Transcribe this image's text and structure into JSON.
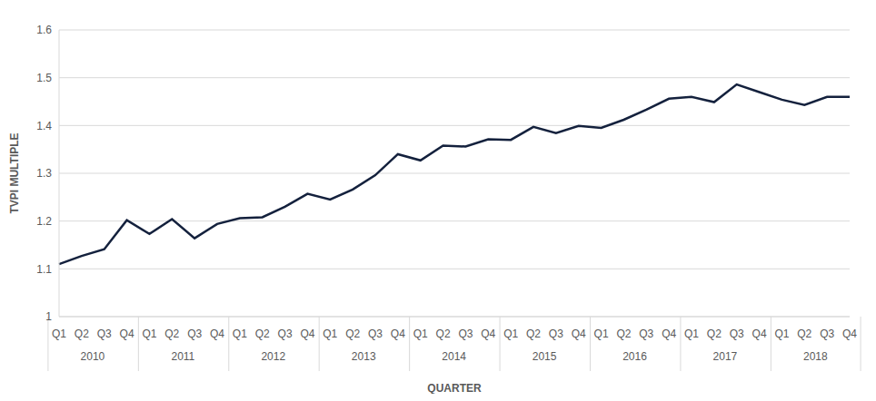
{
  "chart_data": {
    "type": "line",
    "x_label": "QUARTER",
    "y_label": "TVPI MULTIPLE",
    "categories": [
      "Q1",
      "Q2",
      "Q3",
      "Q4",
      "Q1",
      "Q2",
      "Q3",
      "Q4",
      "Q1",
      "Q2",
      "Q3",
      "Q4",
      "Q1",
      "Q2",
      "Q3",
      "Q4",
      "Q1",
      "Q2",
      "Q3",
      "Q4",
      "Q1",
      "Q2",
      "Q3",
      "Q4",
      "Q1",
      "Q2",
      "Q3",
      "Q4",
      "Q1",
      "Q2",
      "Q3",
      "Q4",
      "Q1",
      "Q2",
      "Q3",
      "Q4"
    ],
    "groups": [
      "2010",
      "2011",
      "2012",
      "2013",
      "2014",
      "2015",
      "2016",
      "2017",
      "2018"
    ],
    "values": [
      1.11,
      1.127,
      1.141,
      1.202,
      1.173,
      1.204,
      1.164,
      1.194,
      1.206,
      1.208,
      1.23,
      1.257,
      1.245,
      1.266,
      1.296,
      1.34,
      1.327,
      1.358,
      1.356,
      1.371,
      1.37,
      1.397,
      1.384,
      1.399,
      1.395,
      1.412,
      1.433,
      1.456,
      1.46,
      1.449,
      1.486,
      1.47,
      1.454,
      1.443,
      1.46,
      1.46
    ],
    "color": "#14213d",
    "ylim": [
      1,
      1.6
    ],
    "yticks": [
      1,
      1.1,
      1.2,
      1.3,
      1.4,
      1.5,
      1.6
    ],
    "grid": true
  }
}
